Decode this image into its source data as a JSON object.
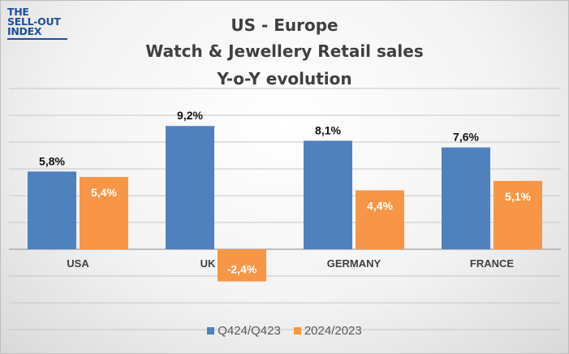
{
  "logo": {
    "line1": "THE",
    "line2": "SELL-OUT",
    "line3": "INDEX"
  },
  "chart_data": {
    "type": "bar",
    "title_lines": [
      "US - Europe",
      "Watch & Jewellery Retail sales",
      "Y-o-Y evolution"
    ],
    "categories": [
      "USA",
      "UK",
      "GERMANY",
      "FRANCE"
    ],
    "series": [
      {
        "name": "Q424/Q423",
        "color": "#4f81bd",
        "values": [
          5.8,
          9.2,
          8.1,
          7.6
        ],
        "labels": [
          "5,8%",
          "9,2%",
          "8,1%",
          "7,6%"
        ]
      },
      {
        "name": "2024/2023",
        "color": "#f79646",
        "values": [
          5.4,
          -2.4,
          4.4,
          5.1
        ],
        "labels": [
          "5,4%",
          "-2,4%",
          "4,4%",
          "5,1%"
        ]
      }
    ],
    "ylim": [
      -6,
      12
    ],
    "grid": true,
    "legend": "bottom"
  }
}
